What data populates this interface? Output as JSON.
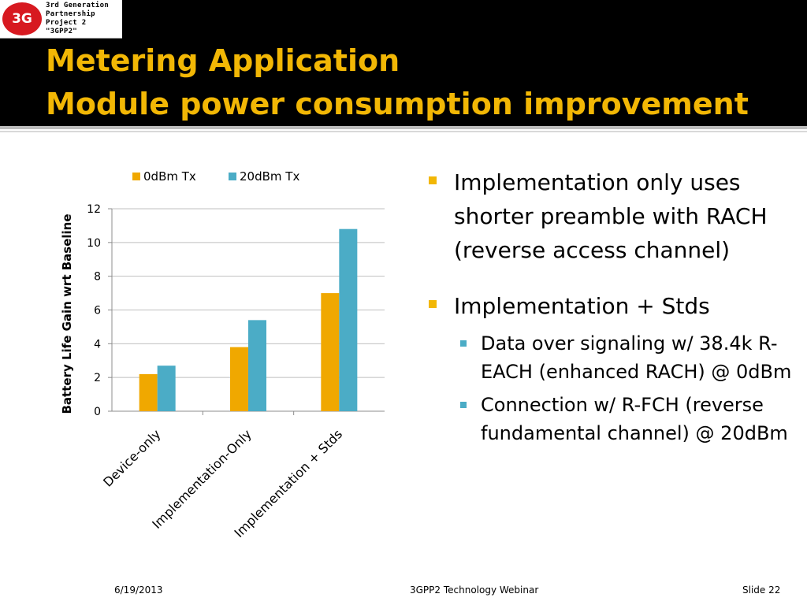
{
  "logo": {
    "badge": "3G",
    "lines": [
      "3rd Generation",
      "Partnership",
      "Project 2",
      "\"3GPP2\""
    ]
  },
  "title": {
    "line1": "Metering Application",
    "line2": "Module power consumption improvement"
  },
  "chart_data": {
    "type": "bar",
    "categories": [
      "Device-only",
      "Implementation-Only",
      "Implementation + Stds"
    ],
    "series": [
      {
        "name": "0dBm Tx",
        "values": [
          2.2,
          3.8,
          7.0
        ],
        "color": "#f0a800"
      },
      {
        "name": "20dBm Tx",
        "values": [
          2.7,
          5.4,
          10.8
        ],
        "color": "#4bacc6"
      }
    ],
    "ylabel": "Battery Life Gain wrt Baseline",
    "ylim": [
      0,
      12
    ],
    "yticks": [
      0,
      2,
      4,
      6,
      8,
      10,
      12
    ],
    "grid": true,
    "legend": "top"
  },
  "bullets": [
    {
      "text": "Implementation only uses shorter preamble with RACH (reverse access channel)",
      "sub": []
    },
    {
      "text": "Implementation + Stds",
      "sub": [
        "Data over signaling w/ 38.4k R-EACH (enhanced RACH) @ 0dBm",
        "Connection w/ R-FCH (reverse fundamental channel) @ 20dBm"
      ]
    }
  ],
  "footer": {
    "date": "6/19/2013",
    "center": "3GPP2 Technology Webinar",
    "slide": "Slide 22"
  },
  "colors": {
    "title": "#f2b705",
    "bullet_main": "#f2b705",
    "bullet_sub": "#4bacc6"
  }
}
